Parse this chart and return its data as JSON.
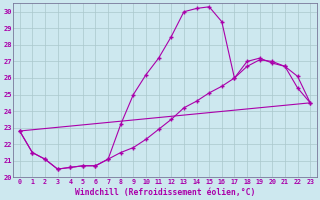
{
  "xlabel": "Windchill (Refroidissement éolien,°C)",
  "xlim": [
    -0.5,
    23.5
  ],
  "ylim": [
    20,
    30.5
  ],
  "xticks": [
    0,
    1,
    2,
    3,
    4,
    5,
    6,
    7,
    8,
    9,
    10,
    11,
    12,
    13,
    14,
    15,
    16,
    17,
    18,
    19,
    20,
    21,
    22,
    23
  ],
  "yticks": [
    20,
    21,
    22,
    23,
    24,
    25,
    26,
    27,
    28,
    29,
    30
  ],
  "bg_color": "#cde8ef",
  "line_color": "#aa00aa",
  "grid_color": "#aac8cc",
  "line1_x": [
    0,
    1,
    2,
    3,
    4,
    5,
    6,
    7,
    8,
    9,
    10,
    11,
    12,
    13,
    14,
    15,
    16,
    17,
    18,
    19,
    20,
    21,
    22,
    23
  ],
  "line1_y": [
    22.8,
    21.5,
    21.1,
    20.5,
    20.6,
    20.7,
    20.7,
    21.1,
    23.2,
    25.0,
    26.2,
    27.2,
    28.5,
    30.0,
    30.2,
    30.3,
    29.4,
    26.0,
    27.0,
    27.2,
    26.9,
    26.7,
    25.4,
    24.5
  ],
  "line2_x": [
    0,
    1,
    2,
    3,
    4,
    5,
    6,
    7,
    8,
    9,
    10,
    11,
    12,
    13,
    14,
    15,
    16,
    17,
    18,
    19,
    20,
    21,
    22,
    23
  ],
  "line2_y": [
    22.8,
    21.5,
    21.1,
    20.5,
    20.6,
    20.7,
    20.7,
    21.1,
    21.5,
    21.8,
    22.3,
    22.9,
    23.5,
    24.2,
    24.6,
    25.1,
    25.5,
    26.0,
    26.7,
    27.1,
    27.0,
    26.7,
    26.1,
    24.5
  ],
  "line3_x": [
    0,
    23
  ],
  "line3_y": [
    22.8,
    24.5
  ]
}
